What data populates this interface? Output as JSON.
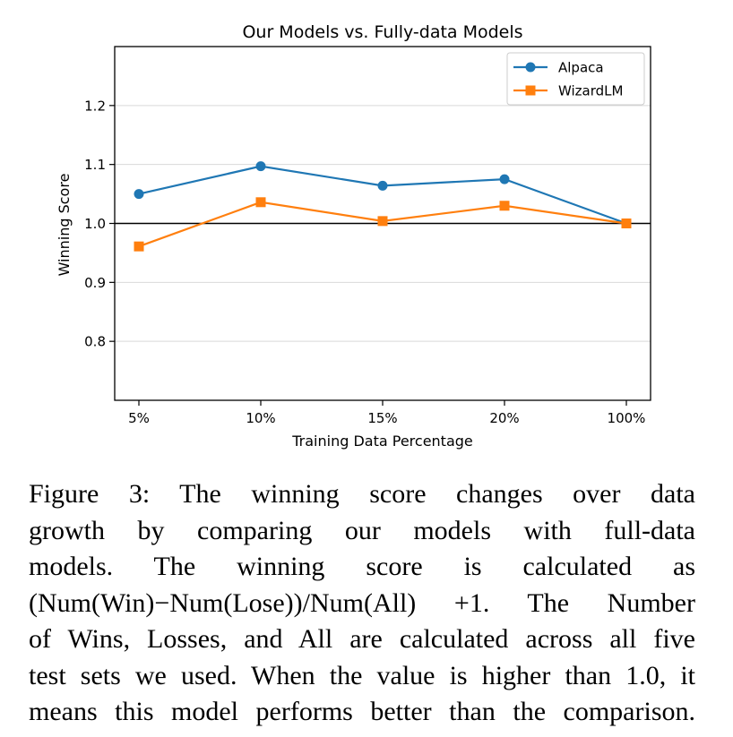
{
  "chart_data": {
    "type": "line",
    "title": "Our Models vs. Fully-data Models",
    "xlabel": "Training Data Percentage",
    "ylabel": "Winning Score",
    "categories": [
      "5%",
      "10%",
      "15%",
      "20%",
      "100%"
    ],
    "series": [
      {
        "name": "Alpaca",
        "values": [
          1.05,
          1.097,
          1.064,
          1.075,
          1.0
        ],
        "color": "#1f77b4",
        "marker": "circle"
      },
      {
        "name": "WizardLM",
        "values": [
          0.961,
          1.036,
          1.004,
          1.03,
          1.0
        ],
        "color": "#ff7f0e",
        "marker": "square"
      }
    ],
    "ylim": [
      0.7,
      1.3
    ],
    "yticks": [
      0.8,
      0.9,
      1.0,
      1.1,
      1.2
    ],
    "ytick_labels": [
      "0.8",
      "0.9",
      "1.0",
      "1.1",
      "1.2"
    ],
    "reference_line": 1.0,
    "grid": "horizontal",
    "legend": "top-right"
  },
  "caption": {
    "lines": [
      "Figure 3:  The winning score changes over data",
      "growth by comparing our models with full-data",
      "models.   The winning score is calculated as",
      "(Num(Win)−Num(Lose))/Num(All) +1. The Number",
      "of Wins, Losses, and All are calculated across all five",
      "test sets we used. When the value is higher than 1.0, it",
      "means this model performs better than the comparison."
    ]
  }
}
